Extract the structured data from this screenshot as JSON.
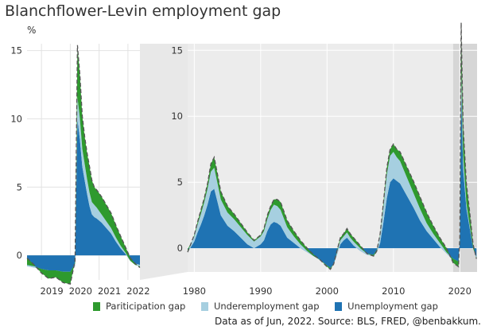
{
  "title": "Blanchflower-Levin employment gap",
  "unit": "%",
  "legend": [
    {
      "label": "Pariticipation gap",
      "color": "#2e9a2e"
    },
    {
      "label": "Underemployment gap",
      "color": "#a6cfe0"
    },
    {
      "label": "Unemployment gap",
      "color": "#1f73b3"
    }
  ],
  "source": "Data as of Jun, 2022. Source: BLS, FRED, @benbakkum.",
  "colors": {
    "participation": "#2e9a2e",
    "underemployment": "#a6cfe0",
    "unemployment": "#1f73b3",
    "total_line": "#555555",
    "zoom_band": "#e8e8e8",
    "panel_bg": "#ececec",
    "recession": "#d6d6d6"
  },
  "chart_data": [
    {
      "type": "area",
      "title": "Blanchflower-Levin employment gap",
      "stacked": true,
      "ylabel": "%",
      "x_range": [
        "2018-07",
        "2022-06"
      ],
      "ylim": [
        -1.8,
        15.5
      ],
      "yticks": [
        0,
        5,
        10,
        15
      ],
      "xticks": [
        "2019",
        "2020",
        "2021",
        "2022"
      ],
      "grid": true,
      "x": [
        "2018-07",
        "2018-10",
        "2019-01",
        "2019-04",
        "2019-07",
        "2019-10",
        "2020-01",
        "2020-03",
        "2020-04",
        "2020-05",
        "2020-06",
        "2020-07",
        "2020-08",
        "2020-09",
        "2020-10",
        "2020-11",
        "2020-12",
        "2021-02",
        "2021-04",
        "2021-06",
        "2021-08",
        "2021-10",
        "2021-12",
        "2022-02",
        "2022-04",
        "2022-06"
      ],
      "series": [
        {
          "name": "Unemployment gap",
          "values": [
            -0.8,
            -0.9,
            -1.0,
            -1.1,
            -1.1,
            -1.2,
            -1.2,
            -0.8,
            10.0,
            8.5,
            6.5,
            5.5,
            4.5,
            3.6,
            3.0,
            2.8,
            2.7,
            2.4,
            2.0,
            1.6,
            1.0,
            0.5,
            0.1,
            -0.4,
            -0.6,
            -0.7
          ]
        },
        {
          "name": "Underemployment gap",
          "values": [
            0.1,
            0.1,
            0.0,
            0.0,
            0.0,
            0.0,
            0.0,
            0.2,
            1.6,
            1.5,
            1.3,
            1.2,
            1.1,
            1.0,
            0.9,
            0.9,
            0.8,
            0.6,
            0.5,
            0.4,
            0.3,
            0.2,
            0.1,
            0.0,
            -0.1,
            -0.1
          ]
        },
        {
          "name": "Pariticipation gap",
          "values": [
            0.5,
            0.1,
            -0.3,
            -0.6,
            -0.5,
            -0.8,
            -0.9,
            0.2,
            3.8,
            3.2,
            2.4,
            2.0,
            1.9,
            1.9,
            1.6,
            1.3,
            1.3,
            1.3,
            1.2,
            1.1,
            0.9,
            0.7,
            0.4,
            0.2,
            0.1,
            -0.1
          ]
        }
      ]
    },
    {
      "type": "area",
      "stacked": true,
      "x_range": [
        1979,
        2022.6
      ],
      "ylim": [
        -1.8,
        15.5
      ],
      "yticks": [
        0,
        5,
        10,
        15
      ],
      "xticks": [
        "1980",
        "1990",
        "2000",
        "2010",
        "2020"
      ],
      "grid": true,
      "shaded_periods": [
        [
          2019.0,
          2022.6
        ]
      ],
      "x": [
        1979.0,
        1980.0,
        1980.5,
        1981.0,
        1981.5,
        1982.0,
        1982.5,
        1983.0,
        1983.5,
        1984.0,
        1985.0,
        1986.0,
        1987.0,
        1988.0,
        1989.0,
        1990.0,
        1990.5,
        1991.0,
        1991.5,
        1992.0,
        1992.5,
        1993.0,
        1994.0,
        1995.0,
        1996.0,
        1997.0,
        1998.0,
        1999.0,
        2000.0,
        2000.5,
        2001.0,
        2001.5,
        2002.0,
        2002.5,
        2003.0,
        2003.5,
        2004.0,
        2005.0,
        2006.0,
        2007.0,
        2007.5,
        2008.0,
        2008.5,
        2009.0,
        2009.5,
        2010.0,
        2010.5,
        2011.0,
        2012.0,
        2013.0,
        2014.0,
        2015.0,
        2016.0,
        2017.0,
        2018.0,
        2019.0,
        2019.8,
        2020.0,
        2020.2,
        2020.3,
        2020.5,
        2021.0,
        2021.5,
        2022.0,
        2022.5
      ],
      "series": [
        {
          "name": "Unemployment gap",
          "values": [
            -0.3,
            0.5,
            1.2,
            1.8,
            2.5,
            3.3,
            4.3,
            4.5,
            3.5,
            2.5,
            1.7,
            1.3,
            0.8,
            0.3,
            0.0,
            0.3,
            0.6,
            1.3,
            1.8,
            2.0,
            1.9,
            1.7,
            0.8,
            0.4,
            0.0,
            -0.3,
            -0.6,
            -0.9,
            -1.3,
            -1.5,
            -1.2,
            -0.5,
            0.3,
            0.6,
            0.8,
            0.5,
            0.2,
            -0.2,
            -0.5,
            -0.6,
            -0.3,
            0.4,
            2.0,
            3.8,
            5.0,
            5.3,
            5.1,
            4.9,
            4.0,
            3.1,
            2.1,
            1.3,
            0.7,
            0.1,
            -0.4,
            -0.9,
            -1.0,
            0.5,
            12.0,
            10.0,
            6.0,
            3.0,
            1.5,
            0.0,
            -0.7
          ]
        },
        {
          "name": "Underemployment gap",
          "values": [
            0.2,
            0.4,
            0.6,
            0.8,
            1.0,
            1.2,
            1.5,
            1.6,
            1.4,
            1.2,
            1.0,
            0.9,
            0.8,
            0.7,
            0.5,
            0.6,
            0.7,
            0.9,
            1.1,
            1.3,
            1.3,
            1.2,
            0.8,
            0.5,
            0.3,
            0.1,
            0.0,
            0.0,
            0.0,
            0.0,
            0.0,
            0.2,
            0.3,
            0.3,
            0.4,
            0.3,
            0.3,
            0.2,
            0.1,
            0.1,
            0.2,
            0.6,
            1.2,
            1.8,
            2.0,
            2.0,
            1.8,
            1.7,
            1.4,
            1.1,
            0.9,
            0.6,
            0.4,
            0.3,
            0.1,
            0.1,
            0.0,
            0.1,
            1.6,
            1.5,
            1.0,
            0.4,
            0.2,
            0.0,
            0.0
          ]
        },
        {
          "name": "Pariticipation gap",
          "values": [
            -0.2,
            0.1,
            0.2,
            0.3,
            0.3,
            0.4,
            0.6,
            0.8,
            0.7,
            0.6,
            0.5,
            0.4,
            0.3,
            0.2,
            0.1,
            0.1,
            0.2,
            0.3,
            0.3,
            0.4,
            0.5,
            0.6,
            0.5,
            0.4,
            0.3,
            0.2,
            0.1,
            0.0,
            -0.1,
            -0.1,
            0.0,
            0.1,
            0.2,
            0.2,
            0.3,
            0.3,
            0.3,
            0.2,
            0.0,
            -0.1,
            -0.1,
            0.1,
            0.3,
            0.5,
            0.5,
            0.6,
            0.6,
            0.7,
            0.8,
            0.9,
            0.9,
            0.8,
            0.6,
            0.4,
            0.3,
            -0.3,
            -0.4,
            0.2,
            3.5,
            2.8,
            2.2,
            1.5,
            1.0,
            0.3,
            -0.1
          ]
        }
      ]
    }
  ]
}
